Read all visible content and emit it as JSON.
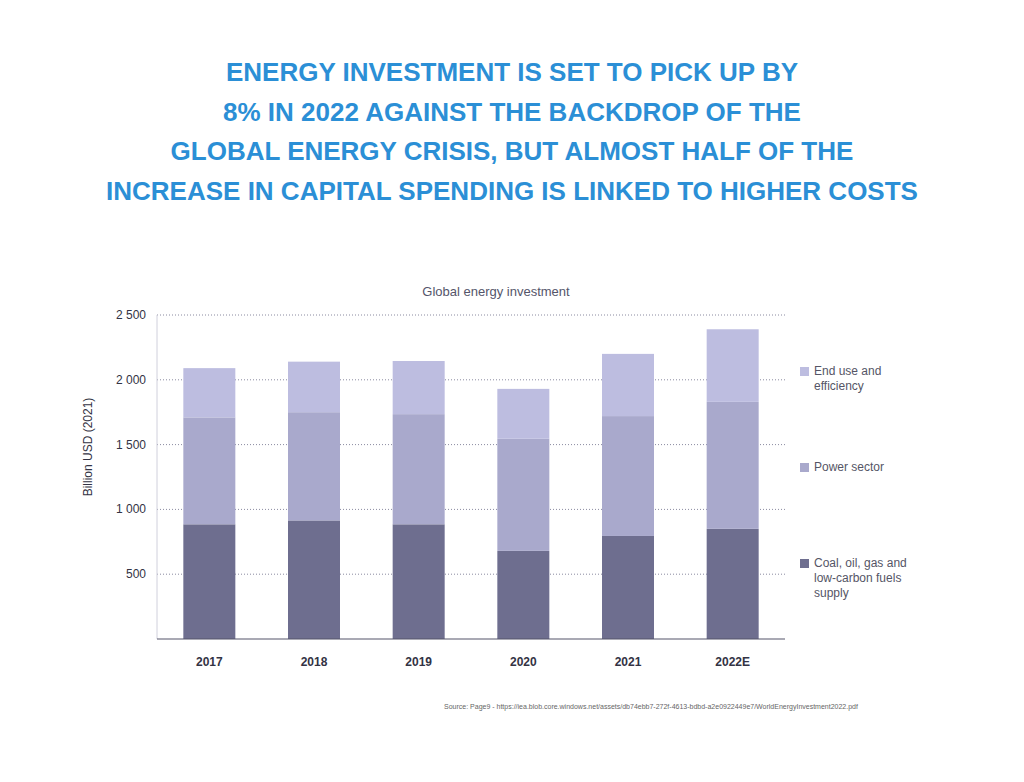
{
  "chart_data": {
    "type": "bar",
    "subtitle": [
      "ENERGY INVESTMENT IS SET TO PICK UP BY",
      "8% IN 2022 AGAINST THE BACKDROP OF THE",
      "GLOBAL ENERGY CRISIS, BUT ALMOST HALF OF THE",
      "INCREASE IN CAPITAL SPENDING IS LINKED TO HIGHER COSTS"
    ],
    "title": "Global energy investment",
    "y_label": "Billion USD (2021)",
    "source": "Source:  Page9 - https://iea.blob.core.windows.net/assets/db74ebb7-272f-4613-bdbd-a2e0922449e7/WorldEnergyInvestment2022.pdf",
    "categories": [
      "2017",
      "2018",
      "2019",
      "2020",
      "2021",
      "2022E"
    ],
    "series": [
      {
        "name": "Coal, oil, gas and low-carbon fuels supply",
        "color": "#6e6e8f",
        "values": [
          885,
          915,
          885,
          680,
          795,
          850
        ]
      },
      {
        "name": "Power sector",
        "color": "#a9a9cc",
        "values": [
          825,
          835,
          850,
          865,
          925,
          980
        ]
      },
      {
        "name": "End use and efficiency",
        "color": "#bdbde0",
        "values": [
          380,
          390,
          410,
          385,
          480,
          560
        ]
      }
    ],
    "stacked": true,
    "ylim": [
      0,
      2500
    ],
    "yticks": [
      500,
      {
        "value": 1000,
        "label": "1 000"
      },
      {
        "value": 1500,
        "label": "1 500"
      },
      {
        "value": 2000,
        "label": "2 000"
      },
      {
        "value": 2500,
        "label": "2 500"
      }
    ],
    "grid": true,
    "legend": "right"
  }
}
